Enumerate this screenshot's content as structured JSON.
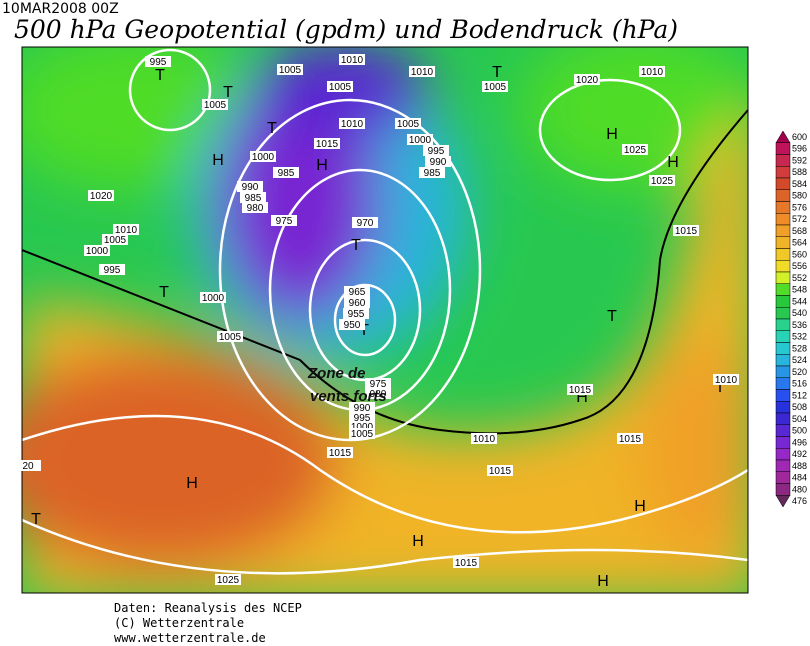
{
  "header": {
    "date": "10MAR2008 00Z",
    "title": "500 hPa Geopotential (gpdm) und Bodendruck (hPa)"
  },
  "map": {
    "labels": [
      "T",
      "T",
      "H",
      "T",
      "H",
      "T",
      "T",
      "T",
      "H",
      "T",
      "H",
      "H",
      "H",
      "T",
      "H",
      "T",
      "H",
      "H",
      "T",
      "995",
      "1005",
      "1005",
      "1005",
      "1010",
      "1010",
      "1005",
      "1020",
      "1010",
      "1010",
      "1005",
      "1000",
      "995",
      "990",
      "985",
      "1015",
      "1000",
      "985",
      "990",
      "985",
      "980",
      "975",
      "970",
      "1020",
      "1010",
      "1005",
      "1000",
      "995",
      "1000",
      "1005",
      "965",
      "960",
      "955",
      "950",
      "975",
      "980",
      "990",
      "995",
      "1000",
      "1005",
      "1015",
      "1010",
      "1015",
      "1015",
      "1015",
      "1015",
      "1025",
      "1025",
      "1025",
      "1015",
      "1010",
      "20"
    ],
    "annotation": [
      "Zone de",
      "vents forts"
    ]
  },
  "colorbar": {
    "levels": [
      600,
      596,
      592,
      588,
      584,
      580,
      576,
      572,
      568,
      564,
      560,
      556,
      552,
      548,
      544,
      540,
      536,
      532,
      528,
      524,
      520,
      516,
      512,
      508,
      504,
      500,
      496,
      492,
      488,
      484,
      480,
      476
    ],
    "colors": [
      "#a0004c",
      "#c0145a",
      "#c82850",
      "#d23c3c",
      "#d24a2a",
      "#dc6428",
      "#e6782a",
      "#f08c28",
      "#f0a028",
      "#f0b428",
      "#f0c828",
      "#f0dc28",
      "#d2f028",
      "#50dc28",
      "#28c83c",
      "#28c850",
      "#28d28c",
      "#28d2b4",
      "#28c8d2",
      "#28b4dc",
      "#2896e6",
      "#2878f0",
      "#2850f0",
      "#2832dc",
      "#3c28d2",
      "#5a28d2",
      "#7828d2",
      "#9628c8",
      "#a028b4",
      "#a0289a",
      "#8c2882",
      "#64285a"
    ]
  },
  "footer": {
    "lines": [
      "Daten: Reanalysis des NCEP",
      "(C) Wetterzentrale",
      "www.wetterzentrale.de"
    ]
  }
}
